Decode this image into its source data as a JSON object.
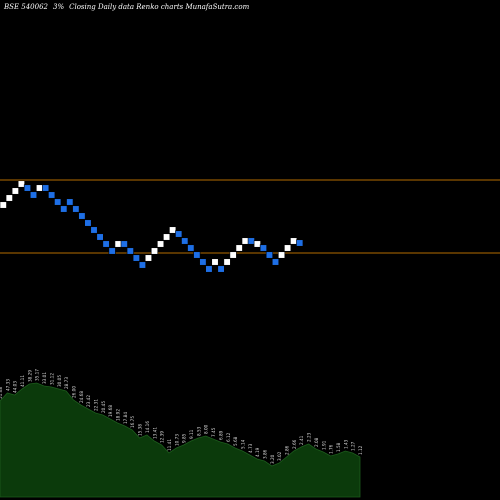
{
  "header": {
    "symbol": "BSE 540062",
    "brick": "3%",
    "chart_title": "Closing Daily data Renko charts MunafaSutra.com"
  },
  "colors": {
    "background": "#000000",
    "up_brick": "#ffffff",
    "down_brick": "#1e6fe6",
    "level_line": "#b36b00",
    "volume_fill": "#0b3a0b",
    "volume_text": "#dddddd"
  },
  "chart_data": {
    "type": "renko",
    "grid": false,
    "levels": [
      180,
      253
    ],
    "bricks": [
      {
        "dir": "up",
        "level": 205
      },
      {
        "dir": "up",
        "level": 198
      },
      {
        "dir": "up",
        "level": 191
      },
      {
        "dir": "up",
        "level": 184
      },
      {
        "dir": "down",
        "level": 188
      },
      {
        "dir": "down",
        "level": 195
      },
      {
        "dir": "up",
        "level": 188
      },
      {
        "dir": "down",
        "level": 188
      },
      {
        "dir": "down",
        "level": 195
      },
      {
        "dir": "down",
        "level": 202
      },
      {
        "dir": "down",
        "level": 209
      },
      {
        "dir": "down",
        "level": 202
      },
      {
        "dir": "down",
        "level": 209
      },
      {
        "dir": "down",
        "level": 216
      },
      {
        "dir": "down",
        "level": 223
      },
      {
        "dir": "down",
        "level": 230
      },
      {
        "dir": "down",
        "level": 237
      },
      {
        "dir": "down",
        "level": 244
      },
      {
        "dir": "down",
        "level": 251
      },
      {
        "dir": "up",
        "level": 244
      },
      {
        "dir": "down",
        "level": 244
      },
      {
        "dir": "down",
        "level": 251
      },
      {
        "dir": "down",
        "level": 258
      },
      {
        "dir": "down",
        "level": 265
      },
      {
        "dir": "up",
        "level": 258
      },
      {
        "dir": "up",
        "level": 251
      },
      {
        "dir": "up",
        "level": 244
      },
      {
        "dir": "up",
        "level": 237
      },
      {
        "dir": "up",
        "level": 230
      },
      {
        "dir": "down",
        "level": 234
      },
      {
        "dir": "down",
        "level": 241
      },
      {
        "dir": "down",
        "level": 248
      },
      {
        "dir": "down",
        "level": 255
      },
      {
        "dir": "down",
        "level": 262
      },
      {
        "dir": "down",
        "level": 269
      },
      {
        "dir": "up",
        "level": 262
      },
      {
        "dir": "down",
        "level": 269
      },
      {
        "dir": "up",
        "level": 262
      },
      {
        "dir": "up",
        "level": 255
      },
      {
        "dir": "up",
        "level": 248
      },
      {
        "dir": "up",
        "level": 241
      },
      {
        "dir": "down",
        "level": 241
      },
      {
        "dir": "up",
        "level": 244
      },
      {
        "dir": "down",
        "level": 248
      },
      {
        "dir": "down",
        "level": 255
      },
      {
        "dir": "down",
        "level": 262
      },
      {
        "dir": "up",
        "level": 255
      },
      {
        "dir": "up",
        "level": 248
      },
      {
        "dir": "up",
        "level": 241
      },
      {
        "dir": "down",
        "level": 243
      }
    ],
    "volume": {
      "values": [
        96,
        104,
        102,
        108,
        113,
        114,
        111,
        110,
        108,
        106,
        97,
        92,
        88,
        84,
        82,
        78,
        74,
        71,
        67,
        59,
        62,
        56,
        52,
        44,
        49,
        52,
        56,
        59,
        61,
        58,
        55,
        53,
        49,
        46,
        42,
        38,
        36,
        31,
        34,
        40,
        46,
        50,
        53,
        48,
        45,
        41,
        43,
        46,
        44,
        40
      ],
      "labels": [
        "51.68",
        "47.33",
        "44.03",
        "41.11",
        "38.29",
        "35.17",
        "33.01",
        "31.12",
        "30.05",
        "28.73",
        "26.00",
        "24.68",
        "23.42",
        "22.31",
        "20.45",
        "19.68",
        "18.92",
        "17.84",
        "16.75",
        "15.38",
        "14.16",
        "13.41",
        "12.39",
        "11.41",
        "10.73",
        "9.85",
        "9.11",
        "8.53",
        "8.00",
        "7.45",
        "6.89",
        "6.12",
        "5.68",
        "5.14",
        "4.73",
        "4.19",
        "3.86",
        "3.20",
        "3.02",
        "2.86",
        "2.66",
        "2.41",
        "2.23",
        "2.08",
        "1.91",
        "1.76",
        "1.58",
        "1.43",
        "1.27",
        "1.12"
      ]
    }
  }
}
